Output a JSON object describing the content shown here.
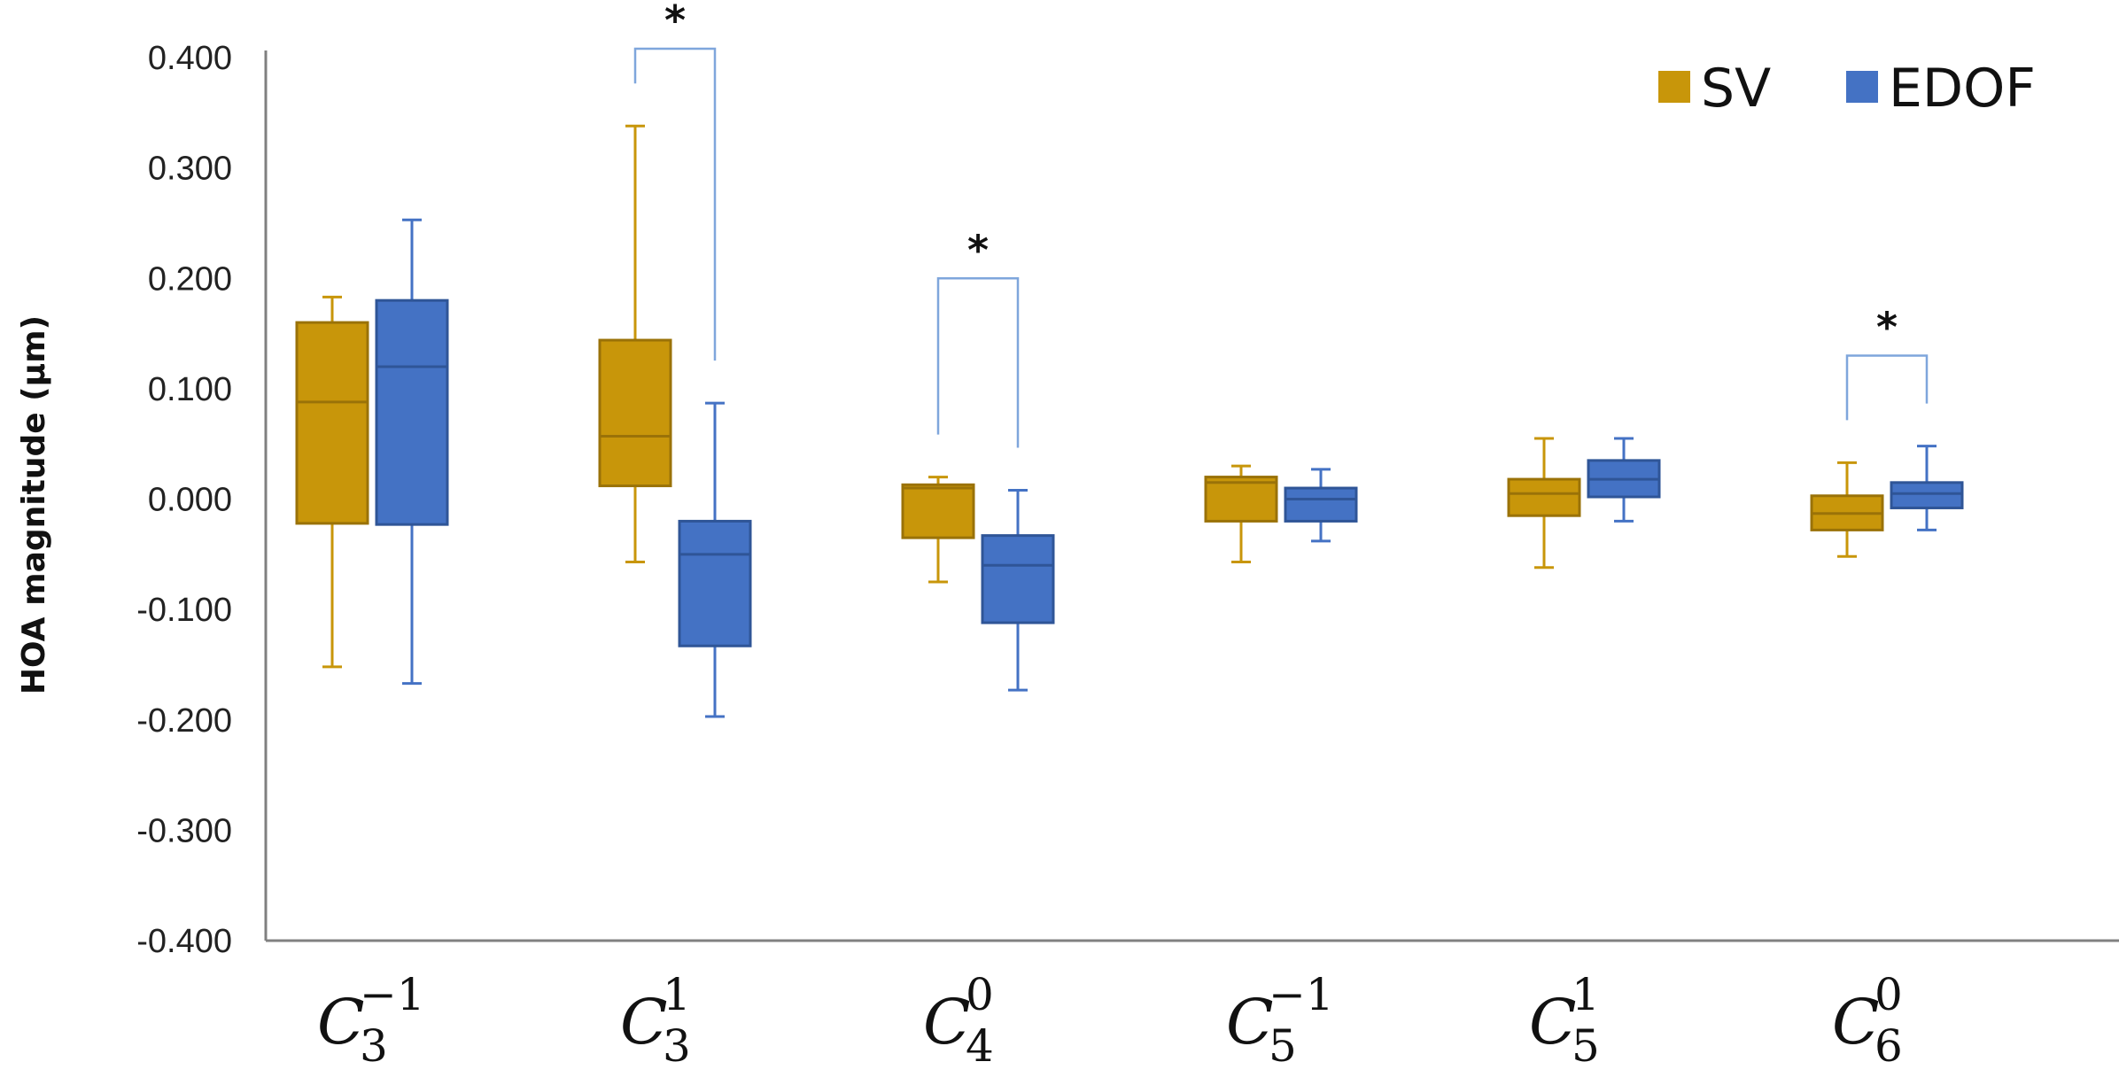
{
  "chart_data": {
    "type": "boxplot",
    "title": "",
    "xlabel": "",
    "ylabel": "HOA magnitude (µm)",
    "ylim": [
      -0.4,
      0.4
    ],
    "yticks": [
      0.4,
      0.3,
      0.2,
      0.1,
      0.0,
      -0.1,
      -0.2,
      -0.3,
      -0.4
    ],
    "ytick_labels": [
      "0.400",
      "0.300",
      "0.200",
      "0.100",
      "0.000",
      "-0.100",
      "-0.200",
      "-0.300",
      "-0.400"
    ],
    "legend_position": "top-right",
    "categories": [
      {
        "base": "C",
        "sub": "3",
        "sup": "−1"
      },
      {
        "base": "C",
        "sub": "3",
        "sup": "1"
      },
      {
        "base": "C",
        "sub": "4",
        "sup": "0"
      },
      {
        "base": "C",
        "sub": "5",
        "sup": "−1"
      },
      {
        "base": "C",
        "sub": "5",
        "sup": "1"
      },
      {
        "base": "C",
        "sub": "6",
        "sup": "0"
      }
    ],
    "series": [
      {
        "name": "SV",
        "color": "#C8960A",
        "edge": "#9A7208",
        "boxes": [
          {
            "min": -0.152,
            "q1": -0.022,
            "median": 0.088,
            "q3": 0.16,
            "max": 0.183
          },
          {
            "min": -0.057,
            "q1": 0.012,
            "median": 0.057,
            "q3": 0.144,
            "max": 0.338
          },
          {
            "min": -0.075,
            "q1": -0.035,
            "median": 0.01,
            "q3": 0.013,
            "max": 0.02
          },
          {
            "min": -0.057,
            "q1": -0.02,
            "median": 0.015,
            "q3": 0.02,
            "max": 0.03
          },
          {
            "min": -0.062,
            "q1": -0.015,
            "median": 0.005,
            "q3": 0.018,
            "max": 0.055
          },
          {
            "min": -0.052,
            "q1": -0.028,
            "median": -0.013,
            "q3": 0.003,
            "max": 0.033
          }
        ]
      },
      {
        "name": "EDOF",
        "color": "#4472C4",
        "edge": "#2F5597",
        "boxes": [
          {
            "min": -0.167,
            "q1": -0.023,
            "median": 0.12,
            "q3": 0.18,
            "max": 0.253
          },
          {
            "min": -0.197,
            "q1": -0.133,
            "median": -0.05,
            "q3": -0.02,
            "max": 0.087
          },
          {
            "min": -0.173,
            "q1": -0.112,
            "median": -0.06,
            "q3": -0.033,
            "max": 0.008
          },
          {
            "min": -0.038,
            "q1": -0.02,
            "median": 0.0,
            "q3": 0.01,
            "max": 0.027
          },
          {
            "min": -0.02,
            "q1": 0.002,
            "median": 0.018,
            "q3": 0.035,
            "max": 0.055
          },
          {
            "min": -0.028,
            "q1": -0.008,
            "median": 0.005,
            "q3": 0.015,
            "max": 0.048
          }
        ]
      }
    ],
    "significance": [
      {
        "category_index": 1,
        "label": "*",
        "bracket_top": 0.408
      },
      {
        "category_index": 2,
        "label": "*",
        "bracket_top": 0.2
      },
      {
        "category_index": 5,
        "label": "*",
        "bracket_top": 0.13
      }
    ]
  }
}
